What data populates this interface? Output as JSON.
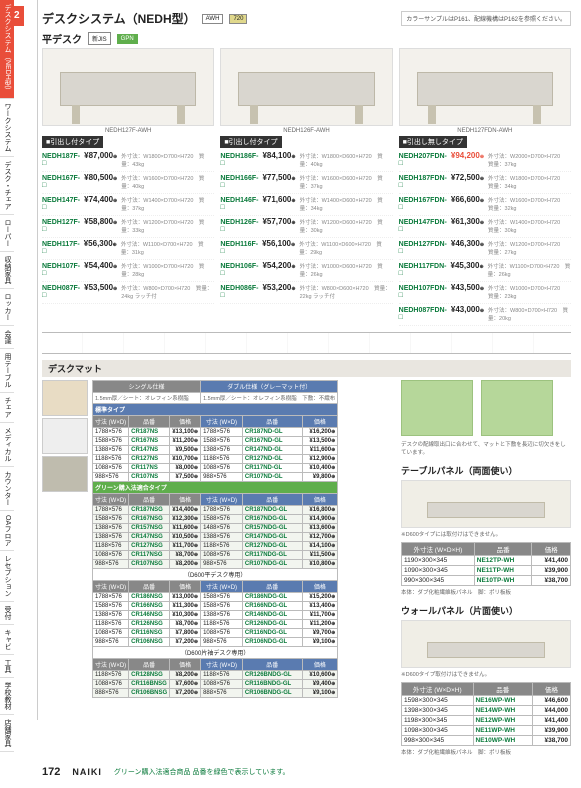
{
  "pagenum_badge": "02",
  "header": {
    "title": "デスクシステム（NEDH型）",
    "swatch_note": "カラーサンプルはP161、配線機構はP162を参照ください。"
  },
  "sub": {
    "title": "平デスク",
    "badge1": "新JIS",
    "badge2": "GPN"
  },
  "sidebar_items": [
    "デスクシステム（NEDH型）",
    "ワークシステム",
    "デスク・チェア",
    "ローパー",
    "収納家具",
    "ロッカー",
    "会議",
    "用テーブル",
    "チェア",
    "メディカル",
    "カウンター",
    "OAフロア",
    "レセプション",
    "受付",
    "キャビ",
    "工具",
    "学校教材",
    "店舗家具"
  ],
  "desks": [
    {
      "caption": "NEDH127F-AWH",
      "type_label": "引出し付タイプ",
      "rows": [
        {
          "code": "NEDH187F-□",
          "price": "¥87,000",
          "spec": "外寸法：W1800×D700×H720　質量：43kg"
        },
        {
          "code": "NEDH167F-□",
          "price": "¥80,500",
          "spec": "外寸法：W1600×D700×H720　質量：40kg"
        },
        {
          "code": "NEDH147F-□",
          "price": "¥74,400",
          "spec": "外寸法：W1400×D700×H720　質量：37kg"
        },
        {
          "code": "NEDH127F-□",
          "price": "¥58,800",
          "spec": "外寸法：W1200×D700×H720　質量：33kg"
        },
        {
          "code": "NEDH117F-□",
          "price": "¥56,300",
          "spec": "外寸法：W1100×D700×H720　質量：31kg"
        },
        {
          "code": "NEDH107F-□",
          "price": "¥54,400",
          "spec": "外寸法：W1000×D700×H720　質量：28kg"
        },
        {
          "code": "NEDH087F-□",
          "price": "¥53,500",
          "spec": "外寸法：W800×D700×H720　質量：24kg  ラッチ付"
        }
      ]
    },
    {
      "caption": "NEDH126F-AWH",
      "type_label": "引出し付タイプ",
      "rows": [
        {
          "code": "NEDH186F-□",
          "price": "¥84,100",
          "spec": "外寸法：W1800×D600×H720　質量：40kg"
        },
        {
          "code": "NEDH166F-□",
          "price": "¥77,500",
          "spec": "外寸法：W1600×D600×H720　質量：37kg"
        },
        {
          "code": "NEDH146F-□",
          "price": "¥71,600",
          "spec": "外寸法：W1400×D600×H720　質量：34kg"
        },
        {
          "code": "NEDH126F-□",
          "price": "¥57,700",
          "spec": "外寸法：W1200×D600×H720　質量：30kg"
        },
        {
          "code": "NEDH116F-□",
          "price": "¥56,100",
          "spec": "外寸法：W1100×D600×H720　質量：29kg"
        },
        {
          "code": "NEDH106F-□",
          "price": "¥54,200",
          "spec": "外寸法：W1000×D600×H720　質量：26kg"
        },
        {
          "code": "NEDH086F-□",
          "price": "¥53,200",
          "spec": "外寸法：W800×D600×H720　質量：22kg  ラッチ付"
        }
      ]
    },
    {
      "caption": "NEDH127FDN-AWH",
      "type_label": "引出し無しタイプ",
      "rows": [
        {
          "code": "NEDH207FDN-□",
          "price": "¥94,200",
          "spec": "外寸法：W2000×D700×H720　質量：37kg",
          "hl": true
        },
        {
          "code": "NEDH187FDN-□",
          "price": "¥72,500",
          "spec": "外寸法：W1800×D700×H720　質量：34kg"
        },
        {
          "code": "NEDH167FDN-□",
          "price": "¥66,600",
          "spec": "外寸法：W1600×D700×H720　質量：32kg"
        },
        {
          "code": "NEDH147FDN-□",
          "price": "¥61,300",
          "spec": "外寸法：W1400×D700×H720　質量：30kg"
        },
        {
          "code": "NEDH127FDN-□",
          "price": "¥46,300",
          "spec": "外寸法：W1200×D700×H720　質量：27kg"
        },
        {
          "code": "NEDH117FDN-□",
          "price": "¥45,300",
          "spec": "外寸法：W1100×D700×H720　質量：26kg"
        },
        {
          "code": "NEDH107FDN-□",
          "price": "¥43,500",
          "spec": "外寸法：W1000×D700×H720　質量：23kg"
        },
        {
          "code": "NEDH087FDN-□",
          "price": "¥43,000",
          "spec": "外寸法：W800×D700×H720　質量：20kg"
        }
      ]
    }
  ],
  "mat": {
    "title": "デスクマット",
    "label_std": "標準タイプ",
    "label_green": "グリーン購入法適合タイプ",
    "hdr_single": "シングル仕様",
    "hdr_double": "ダブル仕様（グレーマット付）",
    "note_single": "1.5mm厚／シート：オレフィン系樹脂",
    "note_double": "1.5mm厚／シート：オレフィン系樹脂　下敷：不織布",
    "cols": [
      "寸法 (W×D)",
      "品番",
      "価格",
      "寸法 (W×D)",
      "品番",
      "価格"
    ],
    "rows_std": [
      [
        "1788×576",
        "CR187NS",
        "¥13,100",
        "1788×576",
        "CR187ND-GL",
        "¥16,200"
      ],
      [
        "1588×576",
        "CR167NS",
        "¥11,200",
        "1588×576",
        "CR167ND-GL",
        "¥13,500"
      ],
      [
        "1388×576",
        "CR147NS",
        "¥9,500",
        "1388×576",
        "CR147ND-GL",
        "¥11,600"
      ],
      [
        "1188×576",
        "CR127NS",
        "¥10,700",
        "1188×576",
        "CR127ND-GL",
        "¥12,900"
      ],
      [
        "1088×576",
        "CR117NS",
        "¥8,000",
        "1088×576",
        "CR117ND-GL",
        "¥10,400"
      ],
      [
        "988×576",
        "CR107NS",
        "¥7,500",
        "988×576",
        "CR107ND-GL",
        "¥9,800"
      ]
    ],
    "rows_green": [
      [
        "1788×576",
        "CR187NSG",
        "¥14,400",
        "1788×576",
        "CR187NDG-GL",
        "¥16,800"
      ],
      [
        "1588×576",
        "CR167NSG",
        "¥12,300",
        "1588×576",
        "CR167NDG-GL",
        "¥14,900"
      ],
      [
        "1388×576",
        "CR157NSG",
        "¥11,600",
        "1488×576",
        "CR157NDG-GL",
        "¥13,600"
      ],
      [
        "1388×576",
        "CR147NSG",
        "¥10,500",
        "1388×576",
        "CR147NDG-GL",
        "¥12,700"
      ],
      [
        "1188×576",
        "CR127NSG",
        "¥11,700",
        "1188×576",
        "CR127NDG-GL",
        "¥14,100"
      ],
      [
        "1088×576",
        "CR117NSG",
        "¥8,700",
        "1088×576",
        "CR117NDG-GL",
        "¥11,500"
      ],
      [
        "988×576",
        "CR107NSG",
        "¥8,200",
        "988×576",
        "CR107NDG-GL",
        "¥10,800"
      ]
    ],
    "band_d600": "（D600平デスク専用）",
    "rows_d600": [
      [
        "1788×576",
        "CR186NSG",
        "¥13,000",
        "1588×576",
        "CR186NDG-GL",
        "¥15,200"
      ],
      [
        "1588×576",
        "CR166NSG",
        "¥11,300",
        "1588×576",
        "CR166NDG-GL",
        "¥13,400"
      ],
      [
        "1388×576",
        "CR146NSG",
        "¥10,300",
        "1388×576",
        "CR146NDG-GL",
        "¥11,700"
      ],
      [
        "1188×576",
        "CR126NSG",
        "¥8,700",
        "1188×576",
        "CR126NDG-GL",
        "¥11,200"
      ],
      [
        "1088×576",
        "CR116NSG",
        "¥7,800",
        "1088×576",
        "CR116NDG-GL",
        "¥9,700"
      ],
      [
        "988×576",
        "CR106NSG",
        "¥7,200",
        "988×576",
        "CR106NDG-GL",
        "¥9,100"
      ]
    ],
    "band_d600b": "（D600片袖デスク専用）",
    "rows_d600b": [
      [
        "1188×576",
        "CR128NSG",
        "¥8,200",
        "1188×576",
        "CR126BNDG-GL",
        "¥10,600"
      ],
      [
        "1088×576",
        "CR116BNSG",
        "¥7,600",
        "1088×576",
        "CR116BNDG-GL",
        "¥9,400"
      ],
      [
        "888×576",
        "CR106BNSG",
        "¥7,200",
        "888×576",
        "CR106BNDG-GL",
        "¥9,100"
      ]
    ]
  },
  "right": {
    "note1": "デスクの配線取出口に合わせて、マットと下敷を長辺に切欠きをしています。",
    "title_table": "テーブルパネル（両面使い）",
    "note_table": "※D600タイプには取付けはできません。",
    "cols": [
      "外寸法 (W×D×H)",
      "品番",
      "価格"
    ],
    "rows_table": [
      [
        "1190×300×345",
        "NE12TP-WH",
        "¥41,400"
      ],
      [
        "1090×300×345",
        "NE11TP-WH",
        "¥39,900"
      ],
      [
        "990×300×345",
        "NE10TP-WH",
        "¥38,700"
      ]
    ],
    "mat_table": "本体：ダブ化粧繊維板パネル　脚：ポリ板板",
    "title_wall": "ウォールパネル（片面使い）",
    "note_wall": "※D600タイプ取付けはできません。",
    "rows_wall": [
      [
        "1598×300×345",
        "NE16WP-WH",
        "¥46,600"
      ],
      [
        "1398×300×345",
        "NE14WP-WH",
        "¥44,000"
      ],
      [
        "1198×300×345",
        "NE12WP-WH",
        "¥41,400"
      ],
      [
        "1098×300×345",
        "NE11WP-WH",
        "¥39,900"
      ],
      [
        "998×300×345",
        "NE10WP-WH",
        "¥38,700"
      ]
    ],
    "mat_wall": "本体：ダブ化粧繊維板パネル　脚：ポリ板板"
  },
  "footer": {
    "pagenum": "172",
    "brand": "NAIKI",
    "green_note": "グリーン購入法適合商品 品番を緑色で表示しています。"
  }
}
